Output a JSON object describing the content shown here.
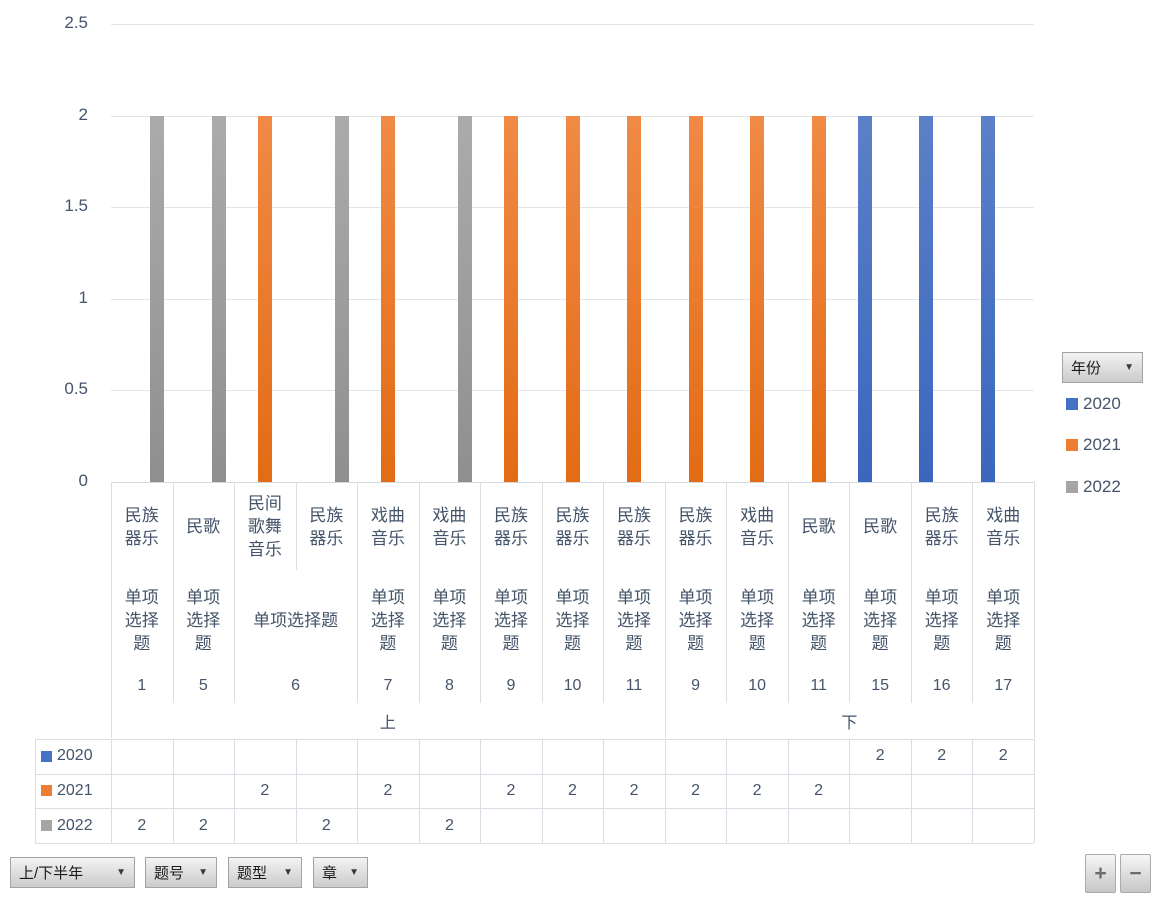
{
  "chart_data": {
    "type": "bar",
    "title": "",
    "ylabel": "",
    "xlabel": "",
    "ylim": [
      0,
      2.5
    ],
    "y_ticks": [
      "2.5",
      "2",
      "1.5",
      "1",
      "0.5",
      "0"
    ],
    "grid": true,
    "legend_position": "right",
    "legend_field": "年份",
    "categories": [
      {
        "chapter": "民族器乐",
        "question_type": "单项选择题",
        "question_no": "1",
        "half": "上"
      },
      {
        "chapter": "民歌",
        "question_type": "单项选择题",
        "question_no": "5",
        "half": "上"
      },
      {
        "chapter": "民间歌舞音乐",
        "question_type": "单项选择题",
        "question_no": "6",
        "half": "上"
      },
      {
        "chapter": "民族器乐",
        "question_type": "单项选择题",
        "question_no": "6",
        "half": "上",
        "merged_with_prev": true
      },
      {
        "chapter": "戏曲音乐",
        "question_type": "单项选择题",
        "question_no": "7",
        "half": "上"
      },
      {
        "chapter": "戏曲音乐",
        "question_type": "单项选择题",
        "question_no": "8",
        "half": "上"
      },
      {
        "chapter": "民族器乐",
        "question_type": "单项选择题",
        "question_no": "9",
        "half": "上"
      },
      {
        "chapter": "民族器乐",
        "question_type": "单项选择题",
        "question_no": "10",
        "half": "上"
      },
      {
        "chapter": "民族器乐",
        "question_type": "单项选择题",
        "question_no": "11",
        "half": "上"
      },
      {
        "chapter": "民族器乐",
        "question_type": "单项选择题",
        "question_no": "9",
        "half": "下"
      },
      {
        "chapter": "戏曲音乐",
        "question_type": "单项选择题",
        "question_no": "10",
        "half": "下"
      },
      {
        "chapter": "民歌",
        "question_type": "单项选择题",
        "question_no": "11",
        "half": "下"
      },
      {
        "chapter": "民歌",
        "question_type": "单项选择题",
        "question_no": "15",
        "half": "下"
      },
      {
        "chapter": "民族器乐",
        "question_type": "单项选择题",
        "question_no": "16",
        "half": "下"
      },
      {
        "chapter": "戏曲音乐",
        "question_type": "单项选择题",
        "question_no": "17",
        "half": "下"
      }
    ],
    "series": [
      {
        "name": "2020",
        "color": "#4472C4",
        "bar_top": "#5C80C8",
        "bar_bottom": "#3A66BE",
        "values": [
          null,
          null,
          null,
          null,
          null,
          null,
          null,
          null,
          null,
          null,
          null,
          null,
          2,
          2,
          2
        ]
      },
      {
        "name": "2021",
        "color": "#ED7D31",
        "bar_top": "#F08A45",
        "bar_bottom": "#E36B15",
        "values": [
          null,
          null,
          2,
          null,
          2,
          null,
          2,
          2,
          2,
          2,
          2,
          2,
          null,
          null,
          null
        ]
      },
      {
        "name": "2022",
        "color": "#A5A5A5",
        "bar_top": "#ABABAB",
        "bar_bottom": "#8F8F8F",
        "values": [
          2,
          2,
          null,
          2,
          null,
          2,
          null,
          null,
          null,
          null,
          null,
          null,
          null,
          null,
          null
        ]
      }
    ]
  },
  "legend": {
    "field_label": "年份",
    "entries": [
      {
        "label": "2020",
        "color": "#4472C4"
      },
      {
        "label": "2021",
        "color": "#ED7D31"
      },
      {
        "label": "2022",
        "color": "#A5A5A5"
      }
    ]
  },
  "filter_buttons": [
    {
      "label": "上/下半年"
    },
    {
      "label": "题号"
    },
    {
      "label": "题型"
    },
    {
      "label": "章"
    }
  ],
  "zoom_controls": {
    "plus_label": "+",
    "minus_label": "−"
  }
}
